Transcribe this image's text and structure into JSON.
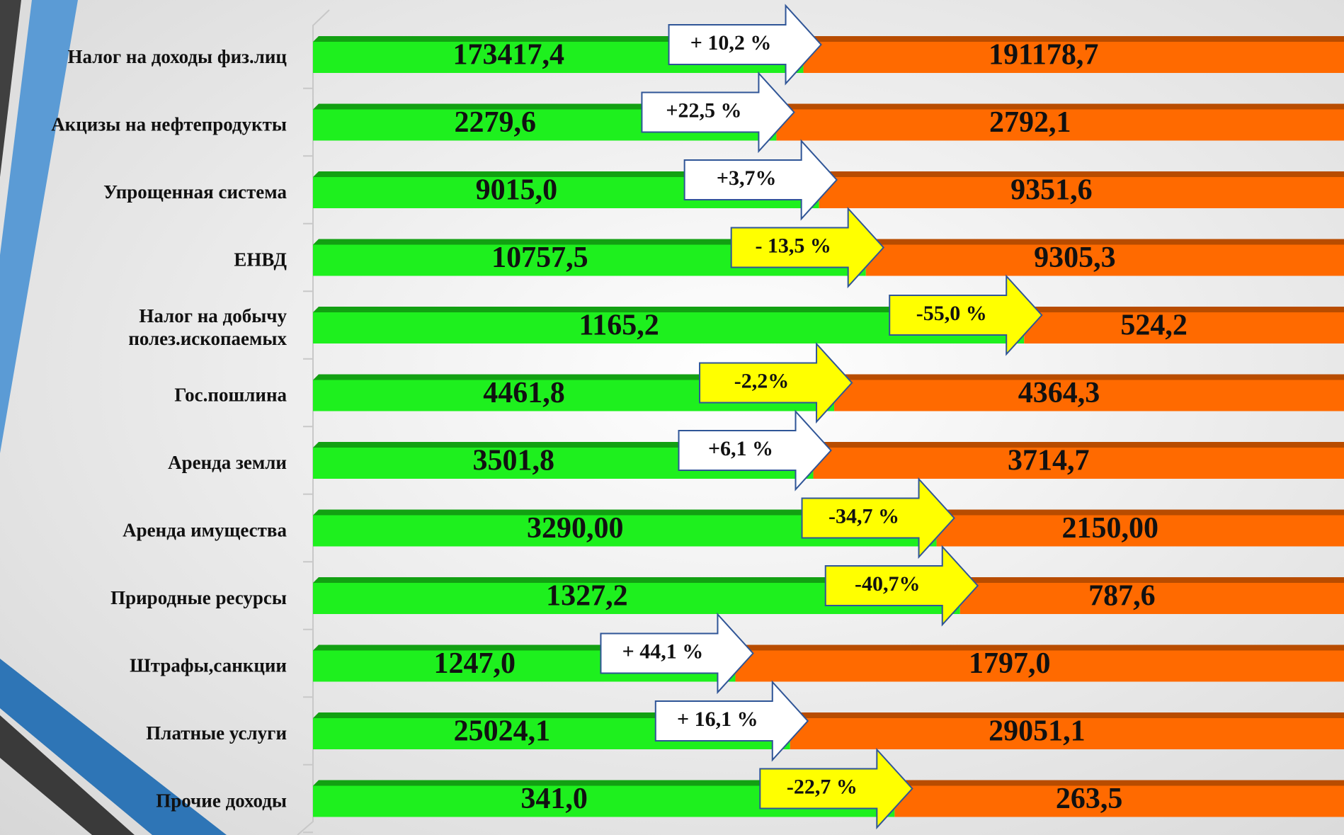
{
  "chart_data": {
    "type": "bar",
    "stacked": "percent",
    "orientation": "horizontal",
    "categories": [
      "Налог на доходы физ.лиц",
      "Акцизы на нефтепродукты",
      "Упрощенная система",
      "ЕНВД",
      "Налог на добычу\nполез.ископаемых",
      "Гос.пошлина",
      "Аренда земли",
      "Аренда имущества",
      "Природные ресурсы",
      "Штрафы,санкции",
      "Платные услуги",
      "Прочие доходы"
    ],
    "series": [
      {
        "color": "#1ef01e",
        "edge_color": "#12a012",
        "values": [
          173417.4,
          2279.6,
          9015.0,
          10757.5,
          1165.2,
          4461.8,
          3501.8,
          3290,
          1327.2,
          1247.0,
          25024.1,
          341.0
        ],
        "value_labels": [
          "173417,4",
          "2279,6",
          "9015,0",
          "10757,5",
          "1165,2",
          "4461,8",
          "3501,8",
          "3290,00",
          "1327,2",
          "1247,0",
          "25024,1",
          "341,0"
        ]
      },
      {
        "color": "#ff6a00",
        "edge_color": "#b84c00",
        "values": [
          191178.7,
          2792.1,
          9351.6,
          9305.3,
          524.2,
          4364.3,
          3714.7,
          2150,
          787.6,
          1797.0,
          29051.1,
          263.5
        ],
        "value_labels": [
          "191178,7",
          "2792,1",
          "9351,6",
          "9305,3",
          "524,2",
          "4364,3",
          "3714,7",
          "2150,00",
          "787,6",
          "1797,0",
          "29051,1",
          "263,5"
        ]
      }
    ],
    "changes": {
      "values": [
        10.2,
        22.5,
        3.7,
        -13.5,
        -55.0,
        -2.2,
        6.1,
        -34.7,
        -40.7,
        44.1,
        16.1,
        -22.7
      ],
      "value_labels": [
        "+ 10,2 %",
        "+22,5 %",
        "+3,7%",
        "- 13,5 %",
        "-55,0 %",
        "-2,2%",
        "+6,1 %",
        "-34,7 %",
        "-40,7%",
        "+ 44,1 %",
        "+ 16,1 %",
        "-22,7 %"
      ],
      "up_color": "#ffffff",
      "down_color": "#ffff00",
      "stroke_color": "#2f5597"
    }
  }
}
